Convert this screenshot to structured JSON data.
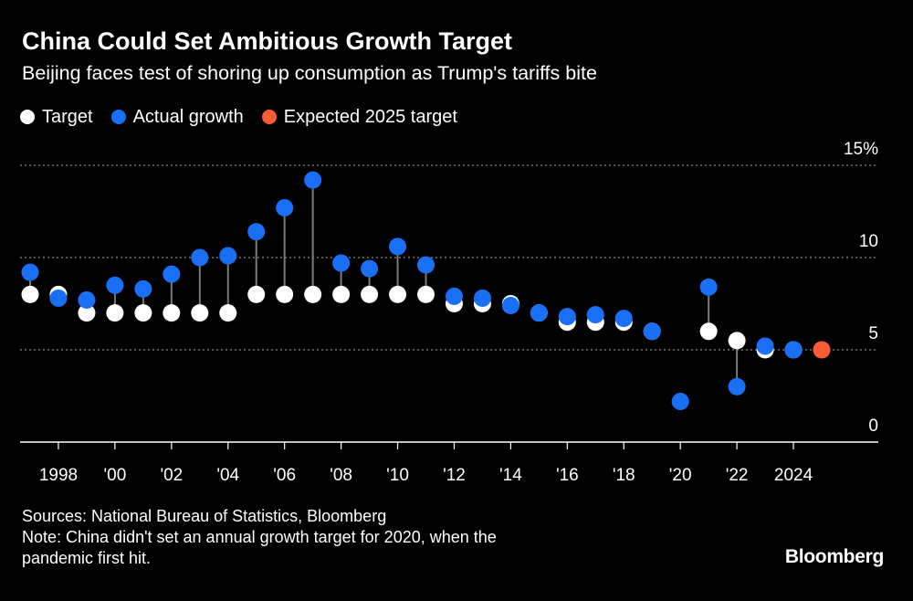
{
  "chart_data": {
    "type": "scatter",
    "title": "China Could Set Ambitious Growth Target",
    "subtitle": "Beijing faces test of shoring up consumption as Trump's tariffs bite",
    "legend": [
      {
        "label": "Target",
        "color": "#ffffff"
      },
      {
        "label": "Actual growth",
        "color": "#1a6ff7"
      },
      {
        "label": "Expected 2025 target",
        "color": "#ff5c35"
      }
    ],
    "ylim": [
      0,
      15
    ],
    "yticks": [
      {
        "value": 15,
        "label": "15%"
      },
      {
        "value": 10,
        "label": "10"
      },
      {
        "value": 5,
        "label": "5"
      },
      {
        "value": 0,
        "label": "0"
      }
    ],
    "xlim": [
      1997,
      2025
    ],
    "xticks": [
      {
        "value": 1998,
        "label": "1998"
      },
      {
        "value": 2000,
        "label": "'00"
      },
      {
        "value": 2002,
        "label": "'02"
      },
      {
        "value": 2004,
        "label": "'04"
      },
      {
        "value": 2006,
        "label": "'06"
      },
      {
        "value": 2008,
        "label": "'08"
      },
      {
        "value": 2010,
        "label": "'10"
      },
      {
        "value": 2012,
        "label": "'12"
      },
      {
        "value": 2014,
        "label": "'14"
      },
      {
        "value": 2016,
        "label": "'16"
      },
      {
        "value": 2018,
        "label": "'18"
      },
      {
        "value": 2020,
        "label": "'20"
      },
      {
        "value": 2022,
        "label": "'22"
      },
      {
        "value": 2024,
        "label": "2024"
      }
    ],
    "series": [
      {
        "name": "Target",
        "x": [
          1997,
          1998,
          1999,
          2000,
          2001,
          2002,
          2003,
          2004,
          2005,
          2006,
          2007,
          2008,
          2009,
          2010,
          2011,
          2012,
          2013,
          2014,
          2015,
          2016,
          2017,
          2018,
          2019,
          2021,
          2022,
          2023,
          2024
        ],
        "values": [
          8,
          8,
          7,
          7,
          7,
          7,
          7,
          7,
          8,
          8,
          8,
          8,
          8,
          8,
          8,
          7.5,
          7.5,
          7.5,
          7,
          6.5,
          6.5,
          6.5,
          6,
          6,
          5.5,
          5,
          5
        ]
      },
      {
        "name": "Actual growth",
        "x": [
          1997,
          1998,
          1999,
          2000,
          2001,
          2002,
          2003,
          2004,
          2005,
          2006,
          2007,
          2008,
          2009,
          2010,
          2011,
          2012,
          2013,
          2014,
          2015,
          2016,
          2017,
          2018,
          2019,
          2020,
          2021,
          2022,
          2023,
          2024
        ],
        "values": [
          9.2,
          7.8,
          7.7,
          8.5,
          8.3,
          9.1,
          10,
          10.1,
          11.4,
          12.7,
          14.2,
          9.7,
          9.4,
          10.6,
          9.6,
          7.9,
          7.8,
          7.4,
          7,
          6.8,
          6.9,
          6.7,
          6,
          2.2,
          8.4,
          3,
          5.2,
          5
        ]
      },
      {
        "name": "Expected 2025 target",
        "x": [
          2025
        ],
        "values": [
          5
        ]
      }
    ]
  },
  "footer": {
    "sources": "Sources: National Bureau of Statistics, Bloomberg",
    "note_line1": "Note: China didn't set an annual growth target for 2020, when the",
    "note_line2": "pandemic first hit."
  },
  "logo": "Bloomberg"
}
